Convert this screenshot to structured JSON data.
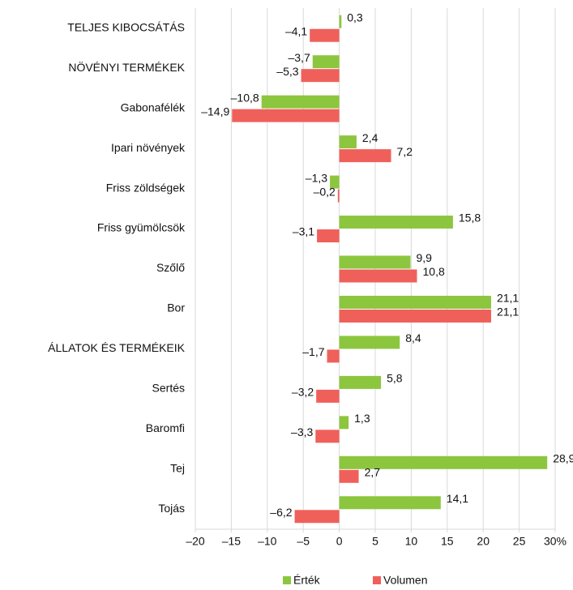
{
  "chart_data": {
    "type": "hbar",
    "categories": [
      "TELJES KIBOCSÁTÁS",
      "NÖVÉNYI TERMÉKEK",
      "Gabonafélék",
      "Ipari növények",
      "Friss zöldségek",
      "Friss gyümölcsök",
      "Szőlő",
      "Bor",
      "ÁLLATOK ÉS TERMÉKEIK",
      "Sertés",
      "Baromfi",
      "Tej",
      "Tojás"
    ],
    "series": [
      {
        "name": "Érték",
        "color": "#8cc63e",
        "values": [
          0.3,
          -3.7,
          -10.8,
          2.4,
          -1.3,
          15.8,
          9.9,
          21.1,
          8.4,
          5.8,
          1.3,
          28.9,
          14.1
        ],
        "value_labels": [
          "0,3",
          "–3,7",
          "–10,8",
          "2,4",
          "–1,3",
          "15,8",
          "9,9",
          "21,1",
          "8,4",
          "5,8",
          "1,3",
          "28,9",
          "14,1"
        ]
      },
      {
        "name": "Volumen",
        "color": "#f0605a",
        "values": [
          -4.1,
          -5.3,
          -14.9,
          7.2,
          -0.2,
          -3.1,
          10.8,
          21.1,
          -1.7,
          -3.2,
          -3.3,
          2.7,
          -6.2
        ],
        "value_labels": [
          "–4,1",
          "–5,3",
          "–14,9",
          "7,2",
          "–0,2",
          "–3,1",
          "10,8",
          "21,1",
          "–1,7",
          "–3,2",
          "–3,3",
          "2,7",
          "–6,2"
        ]
      }
    ],
    "xlim": [
      -20,
      30
    ],
    "xticks": [
      {
        "value": -20,
        "label": "–20"
      },
      {
        "value": -15,
        "label": "–15"
      },
      {
        "value": -10,
        "label": "–10"
      },
      {
        "value": -5,
        "label": "–5"
      },
      0,
      5,
      10,
      15,
      20,
      25,
      {
        "value": 30,
        "label": "30%"
      }
    ],
    "grid": true,
    "legend": "bottom"
  }
}
